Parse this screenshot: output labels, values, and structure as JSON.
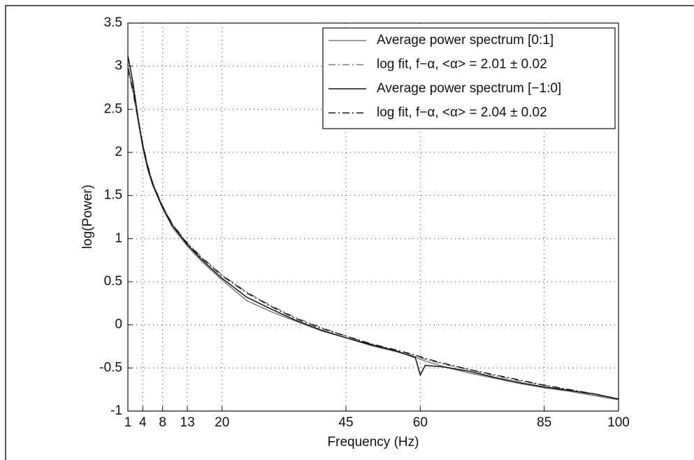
{
  "chart_data": {
    "type": "line",
    "xlabel": "Frequency  (Hz)",
    "ylabel": "log(Power)",
    "x": [
      1,
      2,
      3,
      4,
      5,
      6,
      8,
      10,
      13,
      16,
      20,
      25,
      30,
      35,
      40,
      45,
      50,
      55,
      59,
      60,
      61,
      65,
      70,
      75,
      80,
      85,
      90,
      95,
      100
    ],
    "series": [
      {
        "name": "Average power spectrum [0:1]",
        "color": "#7a7a7a",
        "dash": "solid",
        "values": [
          3.0,
          2.75,
          2.38,
          2.05,
          1.8,
          1.62,
          1.35,
          1.13,
          0.91,
          0.73,
          0.52,
          0.28,
          0.15,
          0.04,
          -0.07,
          -0.15,
          -0.24,
          -0.31,
          -0.37,
          -0.4,
          -0.42,
          -0.49,
          -0.56,
          -0.62,
          -0.68,
          -0.73,
          -0.77,
          -0.82,
          -0.87
        ]
      },
      {
        "name": "log fit, f−α, <α> = 2.01 ± 0.02",
        "color": "#7a7a7a",
        "dash": "dashdot",
        "values": [
          2.95,
          2.7,
          2.4,
          2.1,
          1.85,
          1.65,
          1.38,
          1.17,
          0.95,
          0.78,
          0.58,
          0.38,
          0.22,
          0.08,
          -0.03,
          -0.13,
          -0.22,
          -0.3,
          -0.36,
          -0.38,
          -0.4,
          -0.46,
          -0.52,
          -0.59,
          -0.65,
          -0.7,
          -0.76,
          -0.81,
          -0.86
        ]
      },
      {
        "name": "Average power spectrum [−1:0]",
        "color": "#111111",
        "dash": "solid",
        "values": [
          3.12,
          2.82,
          2.42,
          2.08,
          1.82,
          1.63,
          1.36,
          1.15,
          0.93,
          0.75,
          0.54,
          0.32,
          0.18,
          0.05,
          -0.06,
          -0.15,
          -0.23,
          -0.3,
          -0.38,
          -0.58,
          -0.47,
          -0.49,
          -0.54,
          -0.61,
          -0.67,
          -0.72,
          -0.76,
          -0.8,
          -0.86
        ]
      },
      {
        "name": "log fit, f−α, <α> = 2.04 ± 0.02",
        "color": "#111111",
        "dash": "dashdot",
        "values": [
          2.98,
          2.72,
          2.41,
          2.09,
          1.84,
          1.64,
          1.37,
          1.16,
          0.94,
          0.77,
          0.57,
          0.37,
          0.21,
          0.07,
          -0.04,
          -0.13,
          -0.22,
          -0.29,
          -0.35,
          -0.37,
          -0.39,
          -0.45,
          -0.52,
          -0.58,
          -0.64,
          -0.7,
          -0.75,
          -0.8,
          -0.86
        ]
      }
    ],
    "xlim": [
      1,
      100
    ],
    "xticks": [
      1,
      4,
      8,
      13,
      20,
      45,
      60,
      85,
      100
    ],
    "ylim": [
      -1,
      3.5
    ],
    "yticks": [
      -1,
      -0.5,
      0,
      0.5,
      1,
      1.5,
      2,
      2.5,
      3,
      3.5
    ],
    "grid": true,
    "legend": "upper right"
  }
}
